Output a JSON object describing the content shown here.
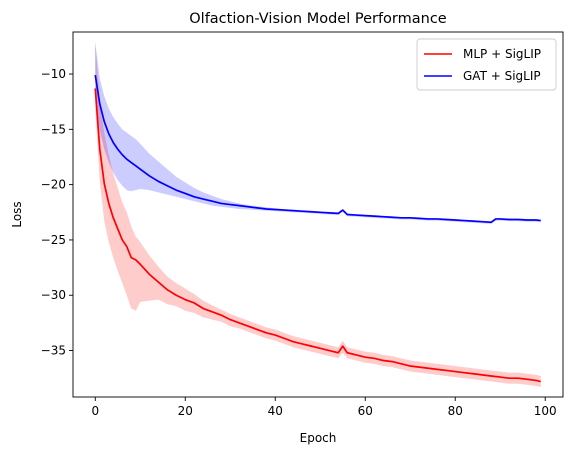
{
  "chart_data": {
    "type": "line",
    "title": "Olfaction-Vision Model Performance",
    "xlabel": "Epoch",
    "ylabel": "Loss",
    "xlim": [
      -4.95,
      103.95
    ],
    "ylim": [
      -39.2,
      -6.2
    ],
    "xticks": [
      0,
      20,
      40,
      60,
      80,
      100
    ],
    "yticks": [
      -10,
      -15,
      -20,
      -25,
      -30,
      -35
    ],
    "grid": false,
    "legend_position": "top-right",
    "series": [
      {
        "name": "MLP + SigLIP",
        "color": "#ff0000",
        "band_color": "#ff0000",
        "x": [
          0,
          1,
          2,
          3,
          4,
          5,
          6,
          7,
          8,
          9,
          10,
          12,
          14,
          16,
          18,
          20,
          22,
          24,
          26,
          28,
          30,
          32,
          34,
          36,
          38,
          40,
          42,
          44,
          46,
          48,
          50,
          52,
          54,
          55,
          56,
          58,
          60,
          62,
          64,
          66,
          68,
          70,
          72,
          74,
          76,
          78,
          80,
          82,
          84,
          86,
          88,
          90,
          92,
          94,
          96,
          98,
          99
        ],
        "values": [
          -11.3,
          -16.8,
          -19.9,
          -21.7,
          -23.0,
          -24.0,
          -25.0,
          -25.6,
          -26.6,
          -26.8,
          -27.2,
          -28.1,
          -28.8,
          -29.5,
          -30.0,
          -30.4,
          -30.7,
          -31.2,
          -31.5,
          -31.8,
          -32.2,
          -32.5,
          -32.8,
          -33.1,
          -33.4,
          -33.6,
          -33.9,
          -34.2,
          -34.4,
          -34.6,
          -34.8,
          -35.0,
          -35.2,
          -34.6,
          -35.2,
          -35.4,
          -35.6,
          -35.7,
          -35.9,
          -36.0,
          -36.2,
          -36.4,
          -36.5,
          -36.6,
          -36.7,
          -36.8,
          -36.9,
          -37.0,
          -37.1,
          -37.2,
          -37.3,
          -37.4,
          -37.5,
          -37.5,
          -37.6,
          -37.7,
          -37.8
        ],
        "upper": [
          -7.0,
          -12.6,
          -15.3,
          -17.3,
          -19.0,
          -20.3,
          -21.6,
          -22.5,
          -23.8,
          -24.7,
          -25.2,
          -26.4,
          -27.4,
          -28.3,
          -28.9,
          -29.4,
          -29.9,
          -30.5,
          -30.9,
          -31.3,
          -31.7,
          -32.0,
          -32.3,
          -32.6,
          -32.9,
          -33.1,
          -33.4,
          -33.7,
          -33.9,
          -34.1,
          -34.3,
          -34.5,
          -34.7,
          -34.1,
          -34.7,
          -34.9,
          -35.1,
          -35.2,
          -35.4,
          -35.5,
          -35.7,
          -35.9,
          -36.0,
          -36.1,
          -36.2,
          -36.3,
          -36.4,
          -36.5,
          -36.6,
          -36.7,
          -36.8,
          -36.9,
          -37.0,
          -37.0,
          -37.1,
          -37.2,
          -37.3
        ],
        "lower": [
          -13.0,
          -19.8,
          -23.3,
          -25.2,
          -26.6,
          -27.8,
          -28.9,
          -30.0,
          -31.2,
          -31.4,
          -30.6,
          -30.5,
          -30.4,
          -30.8,
          -31.0,
          -31.4,
          -31.6,
          -32.0,
          -32.2,
          -32.4,
          -32.8,
          -33.0,
          -33.3,
          -33.6,
          -33.9,
          -34.1,
          -34.4,
          -34.7,
          -34.9,
          -35.1,
          -35.3,
          -35.5,
          -35.7,
          -35.2,
          -35.7,
          -35.9,
          -36.1,
          -36.2,
          -36.4,
          -36.5,
          -36.7,
          -36.9,
          -37.0,
          -37.1,
          -37.2,
          -37.3,
          -37.4,
          -37.5,
          -37.6,
          -37.7,
          -37.8,
          -37.9,
          -38.0,
          -38.0,
          -38.1,
          -38.2,
          -38.3
        ]
      },
      {
        "name": "GAT + SigLIP",
        "color": "#0000ff",
        "band_color": "#0000ff",
        "x": [
          0,
          1,
          2,
          3,
          4,
          5,
          6,
          7,
          8,
          9,
          10,
          12,
          14,
          16,
          18,
          20,
          22,
          24,
          26,
          28,
          30,
          32,
          34,
          36,
          38,
          40,
          42,
          44,
          46,
          48,
          50,
          52,
          54,
          55,
          56,
          58,
          60,
          62,
          64,
          66,
          68,
          70,
          72,
          74,
          76,
          78,
          80,
          82,
          84,
          86,
          88,
          89,
          90,
          92,
          94,
          96,
          98,
          99
        ],
        "values": [
          -10.1,
          -12.7,
          -14.3,
          -15.4,
          -16.2,
          -16.8,
          -17.3,
          -17.7,
          -18.0,
          -18.3,
          -18.6,
          -19.2,
          -19.7,
          -20.1,
          -20.5,
          -20.8,
          -21.1,
          -21.3,
          -21.5,
          -21.7,
          -21.8,
          -21.9,
          -22.0,
          -22.1,
          -22.2,
          -22.25,
          -22.3,
          -22.35,
          -22.4,
          -22.45,
          -22.5,
          -22.55,
          -22.6,
          -22.3,
          -22.7,
          -22.75,
          -22.8,
          -22.85,
          -22.9,
          -22.95,
          -23.0,
          -23.0,
          -23.05,
          -23.1,
          -23.1,
          -23.15,
          -23.2,
          -23.25,
          -23.3,
          -23.35,
          -23.4,
          -23.1,
          -23.1,
          -23.15,
          -23.15,
          -23.2,
          -23.2,
          -23.25
        ],
        "upper": [
          -7.2,
          -10.4,
          -12.0,
          -13.1,
          -13.9,
          -14.5,
          -15.0,
          -15.3,
          -15.6,
          -15.9,
          -16.3,
          -17.2,
          -17.9,
          -18.6,
          -19.3,
          -19.8,
          -20.3,
          -20.7,
          -21.0,
          -21.3,
          -21.5,
          -21.7,
          -21.85,
          -21.95,
          -22.05,
          -22.15,
          -22.2,
          -22.3,
          -22.35,
          -22.4,
          -22.45,
          -22.5,
          -22.55,
          -22.25,
          -22.65,
          -22.7,
          -22.75,
          -22.8,
          -22.85,
          -22.9,
          -22.95,
          -22.95,
          -23.0,
          -23.05,
          -23.05,
          -23.1,
          -23.15,
          -23.2,
          -23.25,
          -23.3,
          -23.35,
          -23.05,
          -23.05,
          -23.1,
          -23.1,
          -23.15,
          -23.15,
          -23.2
        ],
        "lower": [
          -12.3,
          -15.1,
          -16.8,
          -18.0,
          -18.9,
          -19.6,
          -20.1,
          -20.5,
          -20.6,
          -20.5,
          -20.4,
          -20.5,
          -20.7,
          -20.9,
          -21.1,
          -21.3,
          -21.5,
          -21.7,
          -21.9,
          -22.0,
          -22.1,
          -22.2,
          -22.25,
          -22.3,
          -22.35,
          -22.4,
          -22.45,
          -22.5,
          -22.55,
          -22.6,
          -22.65,
          -22.7,
          -22.75,
          -22.45,
          -22.85,
          -22.9,
          -22.95,
          -23.0,
          -23.05,
          -23.1,
          -23.15,
          -23.15,
          -23.2,
          -23.25,
          -23.25,
          -23.3,
          -23.35,
          -23.4,
          -23.45,
          -23.5,
          -23.55,
          -23.25,
          -23.25,
          -23.3,
          -23.3,
          -23.35,
          -23.35,
          -23.4
        ]
      }
    ]
  }
}
